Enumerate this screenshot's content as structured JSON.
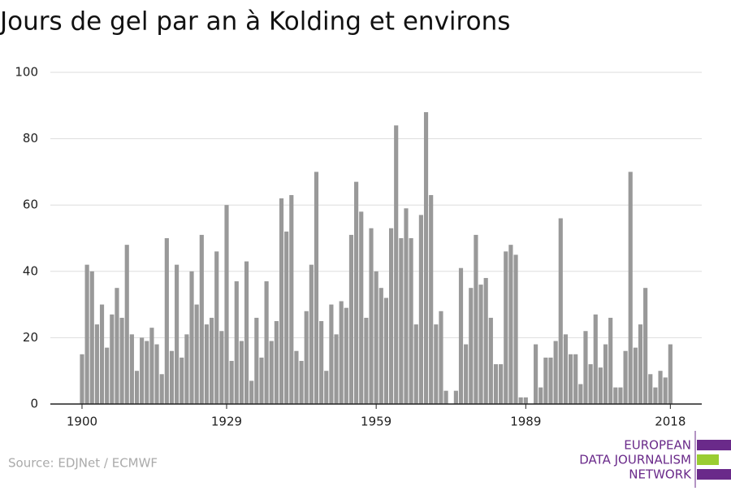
{
  "chart_data": {
    "type": "bar",
    "title": "Jours de gel par an à Kolding et environs",
    "source": "Source: EDJNet / ECMWF",
    "logo": [
      "EUROPEAN",
      "DATA JOURNALISM",
      "NETWORK"
    ],
    "color": "#999999",
    "grid": true,
    "x": [
      1900,
      1901,
      1902,
      1903,
      1904,
      1905,
      1906,
      1907,
      1908,
      1909,
      1910,
      1911,
      1912,
      1913,
      1914,
      1915,
      1916,
      1917,
      1918,
      1919,
      1920,
      1921,
      1922,
      1923,
      1924,
      1925,
      1926,
      1927,
      1928,
      1929,
      1930,
      1931,
      1932,
      1933,
      1934,
      1935,
      1936,
      1937,
      1938,
      1939,
      1940,
      1941,
      1942,
      1943,
      1944,
      1945,
      1946,
      1947,
      1948,
      1949,
      1950,
      1951,
      1952,
      1953,
      1954,
      1955,
      1956,
      1957,
      1958,
      1959,
      1960,
      1961,
      1962,
      1963,
      1964,
      1965,
      1966,
      1967,
      1968,
      1969,
      1970,
      1971,
      1972,
      1973,
      1974,
      1975,
      1976,
      1977,
      1978,
      1979,
      1980,
      1981,
      1982,
      1983,
      1984,
      1985,
      1986,
      1987,
      1988,
      1989,
      1990,
      1991,
      1992,
      1993,
      1994,
      1995,
      1996,
      1997,
      1998,
      1999,
      2000,
      2001,
      2002,
      2003,
      2004,
      2005,
      2006,
      2007,
      2008,
      2009,
      2010,
      2011,
      2012,
      2013,
      2014,
      2015,
      2016,
      2017,
      2018
    ],
    "values": [
      15,
      42,
      40,
      24,
      30,
      17,
      27,
      35,
      26,
      48,
      21,
      10,
      20,
      19,
      23,
      18,
      9,
      50,
      16,
      42,
      14,
      21,
      40,
      30,
      51,
      24,
      26,
      46,
      22,
      60,
      13,
      37,
      19,
      43,
      7,
      26,
      14,
      37,
      19,
      25,
      62,
      52,
      63,
      16,
      13,
      28,
      42,
      70,
      25,
      10,
      30,
      21,
      31,
      29,
      51,
      67,
      58,
      26,
      53,
      40,
      35,
      32,
      53,
      84,
      50,
      59,
      50,
      24,
      57,
      88,
      63,
      24,
      28,
      4,
      0,
      4,
      41,
      18,
      35,
      51,
      36,
      38,
      26,
      12,
      12,
      46,
      48,
      45,
      2,
      2,
      0,
      18,
      5,
      14,
      14,
      19,
      56,
      21,
      15,
      15,
      6,
      22,
      12,
      27,
      11,
      18,
      26,
      5,
      5,
      16,
      70,
      17,
      24,
      35,
      9,
      5,
      10,
      8,
      18
    ],
    "xlim": [
      1893.65,
      2024.3
    ],
    "xticks": [
      1900,
      1929,
      1959,
      1989,
      2018
    ],
    "ylim": [
      0,
      100
    ],
    "yticks": [
      0,
      20,
      40,
      60,
      80,
      100
    ]
  }
}
